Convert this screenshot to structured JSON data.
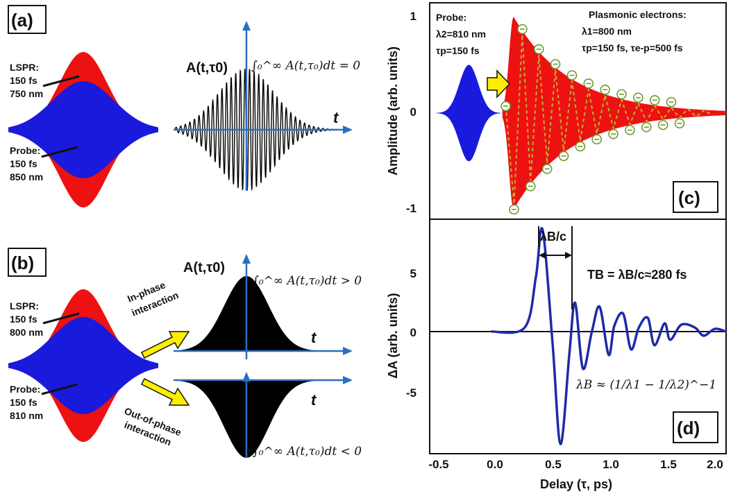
{
  "panels": {
    "a": {
      "label": "(a)",
      "lspr": [
        "LSPR:",
        "150 fs",
        "750 nm"
      ],
      "probe": [
        "Probe:",
        "150 fs",
        "850 nm"
      ],
      "amp_label": "A(t,τ0)",
      "integral": "∫₀^∞ A(t,τ₀)dt = 0",
      "t_label": "t"
    },
    "b": {
      "label": "(b)",
      "lspr": [
        "LSPR:",
        "150 fs",
        "800 nm"
      ],
      "probe": [
        "Probe:",
        "150 fs",
        "810 nm"
      ],
      "amp_label": "A(t,τ0)",
      "integral_pos": "∫₀^∞ A(t,τ₀)dt > 0",
      "integral_neg": "∫₀^∞ A(t,τ₀)dt < 0",
      "in_phase": [
        "In-phase",
        "interaction"
      ],
      "out_phase": [
        "Out-of-phase",
        "interaction"
      ],
      "t_label": "t"
    },
    "c": {
      "label": "(c)",
      "probe": [
        "Probe:",
        "λ2=810 nm",
        "τp=150 fs"
      ],
      "plasmonic": [
        "Plasmonic electrons:",
        "λ1=800 nm",
        "τp=150 fs, τe-p=500 fs"
      ],
      "ylabel": "Amplitude (arb. units)",
      "yticks": [
        "1",
        "0",
        "-1"
      ]
    },
    "d": {
      "label": "(d)",
      "ylabel": "ΔA (arb. units)",
      "yticks": [
        "5",
        "0",
        "-5"
      ],
      "lambda_c": "λB/c",
      "tb": "TB = λB/c≈280 fs",
      "formula": "λB ≈ (1/λ1 − 1/λ2)^−1"
    },
    "xaxis": {
      "xlabel": "Delay (τ, ps)",
      "xticks": [
        "-0.5",
        "0.0",
        "0.5",
        "1.0",
        "1.5",
        "2.0"
      ]
    }
  },
  "colors": {
    "blue": "#1a1adc",
    "red": "#ee1111",
    "black": "#000000",
    "axis_arrow": "#2a6fc0",
    "dot": "#6b9a2a",
    "curve": "#1f2aa8",
    "yellow": "#ffee00"
  },
  "chart_data": [
    {
      "type": "area",
      "panel": "c",
      "xlabel": "",
      "ylabel": "Amplitude (arb. units)",
      "xlim": [
        -0.65,
        2.0
      ],
      "ylim": [
        -1.1,
        1.1
      ],
      "series": [
        {
          "name": "Probe",
          "lambda_nm": 810,
          "tau_fs": 150,
          "center_ps": -0.3,
          "peak_amplitude": 0.5
        },
        {
          "name": "Plasmonic electrons",
          "lambda_nm": 800,
          "tau_p_fs": 150,
          "tau_ep_fs": 500,
          "peak_amplitude": 1.0,
          "peak_delay_ps": 0.1
        }
      ]
    },
    {
      "type": "line",
      "panel": "d",
      "xlabel": "Delay (τ, ps)",
      "ylabel": "ΔA (arb. units)",
      "xlim": [
        -0.65,
        2.0
      ],
      "ylim": [
        -8.6,
        8.6
      ],
      "x": [
        -0.1,
        0.2,
        0.3,
        0.36,
        0.45,
        0.52,
        0.6,
        0.65,
        0.72,
        0.8,
        0.87,
        0.95,
        1.0,
        1.08,
        1.15,
        1.22,
        1.3,
        1.36,
        1.45,
        1.5,
        1.6,
        1.72,
        1.8,
        1.9,
        2.0
      ],
      "series": [
        {
          "values": [
            0,
            0.3,
            4.0,
            7.4,
            -1.0,
            -8.2,
            -1.5,
            2.1,
            -2.7,
            0.0,
            1.8,
            -1.7,
            0.4,
            1.3,
            -1.3,
            0.3,
            1.0,
            -1.0,
            0.6,
            -0.6,
            0.5,
            0.3,
            -0.3,
            0.2,
            0.0
          ]
        }
      ],
      "annotations": [
        "λB/c",
        "TB = λB/c≈280 fs"
      ]
    }
  ]
}
